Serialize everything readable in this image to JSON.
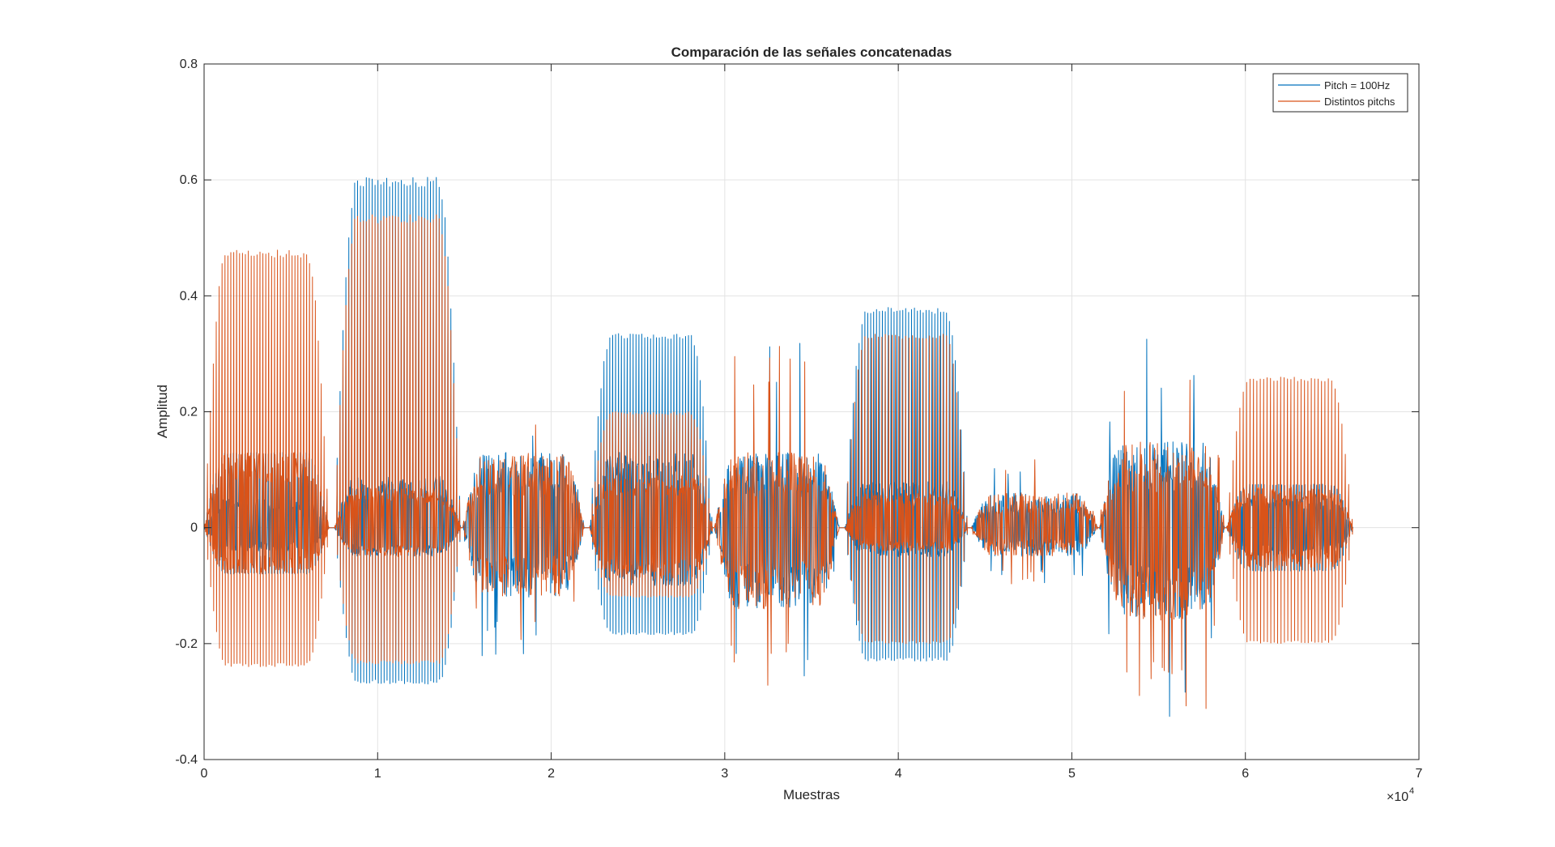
{
  "chart_data": {
    "type": "line",
    "title": "Comparación de las señales concatenadas",
    "xlabel": "Muestras",
    "ylabel": "Amplitud",
    "x_exponent_label": "×10",
    "x_exponent_power": "4",
    "xlim": [
      0,
      70000
    ],
    "ylim": [
      -0.4,
      0.8
    ],
    "xticks": [
      0,
      10000,
      20000,
      30000,
      40000,
      50000,
      60000,
      70000
    ],
    "xtick_labels": [
      "0",
      "1",
      "2",
      "3",
      "4",
      "5",
      "6",
      "7"
    ],
    "yticks": [
      -0.4,
      -0.2,
      0,
      0.2,
      0.4,
      0.6,
      0.8
    ],
    "ytick_labels": [
      "-0.4",
      "-0.2",
      "0",
      "0.2",
      "0.4",
      "0.6",
      "0.8"
    ],
    "grid": true,
    "legend_position": "top-right",
    "total_samples": 66200,
    "series": [
      {
        "name": "Pitch = 100Hz",
        "color": "#0072BD",
        "segments": [
          {
            "kind": "voiced",
            "start": 0,
            "end": 7200,
            "max": 0.13,
            "min": -0.08,
            "inner_max": 0.05,
            "inner_min": -0.04,
            "spike_max": 0.13,
            "spike_min": -0.08
          },
          {
            "kind": "voiced",
            "start": 7500,
            "end": 14800,
            "max": 0.605,
            "min": -0.27,
            "inner_max": 0.09,
            "inner_min": -0.05,
            "spike_max": 0.605,
            "spike_min": -0.27
          },
          {
            "kind": "noise",
            "start": 14900,
            "end": 21900,
            "max": 0.21,
            "min": -0.23,
            "inner_max": 0.13,
            "inner_min": -0.12
          },
          {
            "kind": "voiced",
            "start": 22200,
            "end": 29300,
            "max": 0.335,
            "min": -0.185,
            "inner_max": 0.13,
            "inner_min": -0.1,
            "spike_max": 0.335,
            "spike_min": -0.185
          },
          {
            "kind": "noise",
            "start": 29400,
            "end": 36600,
            "max": 0.32,
            "min": -0.28,
            "inner_max": 0.13,
            "inner_min": -0.14
          },
          {
            "kind": "voiced",
            "start": 36900,
            "end": 44000,
            "max": 0.38,
            "min": -0.23,
            "inner_max": 0.08,
            "inner_min": -0.05,
            "spike_max": 0.38,
            "spike_min": -0.23
          },
          {
            "kind": "noise",
            "start": 44200,
            "end": 51500,
            "max": 0.12,
            "min": -0.1,
            "inner_max": 0.06,
            "inner_min": -0.05
          },
          {
            "kind": "noise",
            "start": 51600,
            "end": 58800,
            "max": 0.33,
            "min": -0.33,
            "inner_max": 0.15,
            "inner_min": -0.16
          },
          {
            "kind": "voiced",
            "start": 58900,
            "end": 66200,
            "max": 0.075,
            "min": -0.075,
            "inner_max": 0.05,
            "inner_min": -0.05,
            "spike_max": 0.075,
            "spike_min": -0.075
          }
        ]
      },
      {
        "name": "Distintos pitchs",
        "color": "#D95319",
        "segments": [
          {
            "kind": "voiced",
            "start": 0,
            "end": 7200,
            "max": 0.48,
            "min": -0.24,
            "inner_max": 0.13,
            "inner_min": -0.08,
            "spike_max": 0.48,
            "spike_min": -0.24
          },
          {
            "kind": "voiced",
            "start": 7500,
            "end": 14800,
            "max": 0.54,
            "min": -0.235,
            "inner_max": 0.07,
            "inner_min": -0.05,
            "spike_max": 0.54,
            "spike_min": -0.235
          },
          {
            "kind": "noise",
            "start": 14900,
            "end": 21900,
            "max": 0.21,
            "min": -0.23,
            "inner_max": 0.13,
            "inner_min": -0.12
          },
          {
            "kind": "voiced",
            "start": 22200,
            "end": 29300,
            "max": 0.2,
            "min": -0.12,
            "inner_max": 0.09,
            "inner_min": -0.09,
            "spike_max": 0.2,
            "spike_min": -0.12
          },
          {
            "kind": "noise",
            "start": 29400,
            "end": 36600,
            "max": 0.32,
            "min": -0.28,
            "inner_max": 0.13,
            "inner_min": -0.14
          },
          {
            "kind": "voiced",
            "start": 36900,
            "end": 44000,
            "max": 0.335,
            "min": -0.2,
            "inner_max": 0.06,
            "inner_min": -0.04,
            "spike_max": 0.335,
            "spike_min": -0.2
          },
          {
            "kind": "noise",
            "start": 44200,
            "end": 51500,
            "max": 0.12,
            "min": -0.1,
            "inner_max": 0.06,
            "inner_min": -0.05
          },
          {
            "kind": "noise",
            "start": 51600,
            "end": 58800,
            "max": 0.33,
            "min": -0.33,
            "inner_max": 0.15,
            "inner_min": -0.16
          },
          {
            "kind": "voiced",
            "start": 58900,
            "end": 66200,
            "max": 0.26,
            "min": -0.2,
            "inner_max": 0.07,
            "inner_min": -0.07,
            "spike_max": 0.26,
            "spike_min": -0.2
          }
        ]
      }
    ]
  }
}
